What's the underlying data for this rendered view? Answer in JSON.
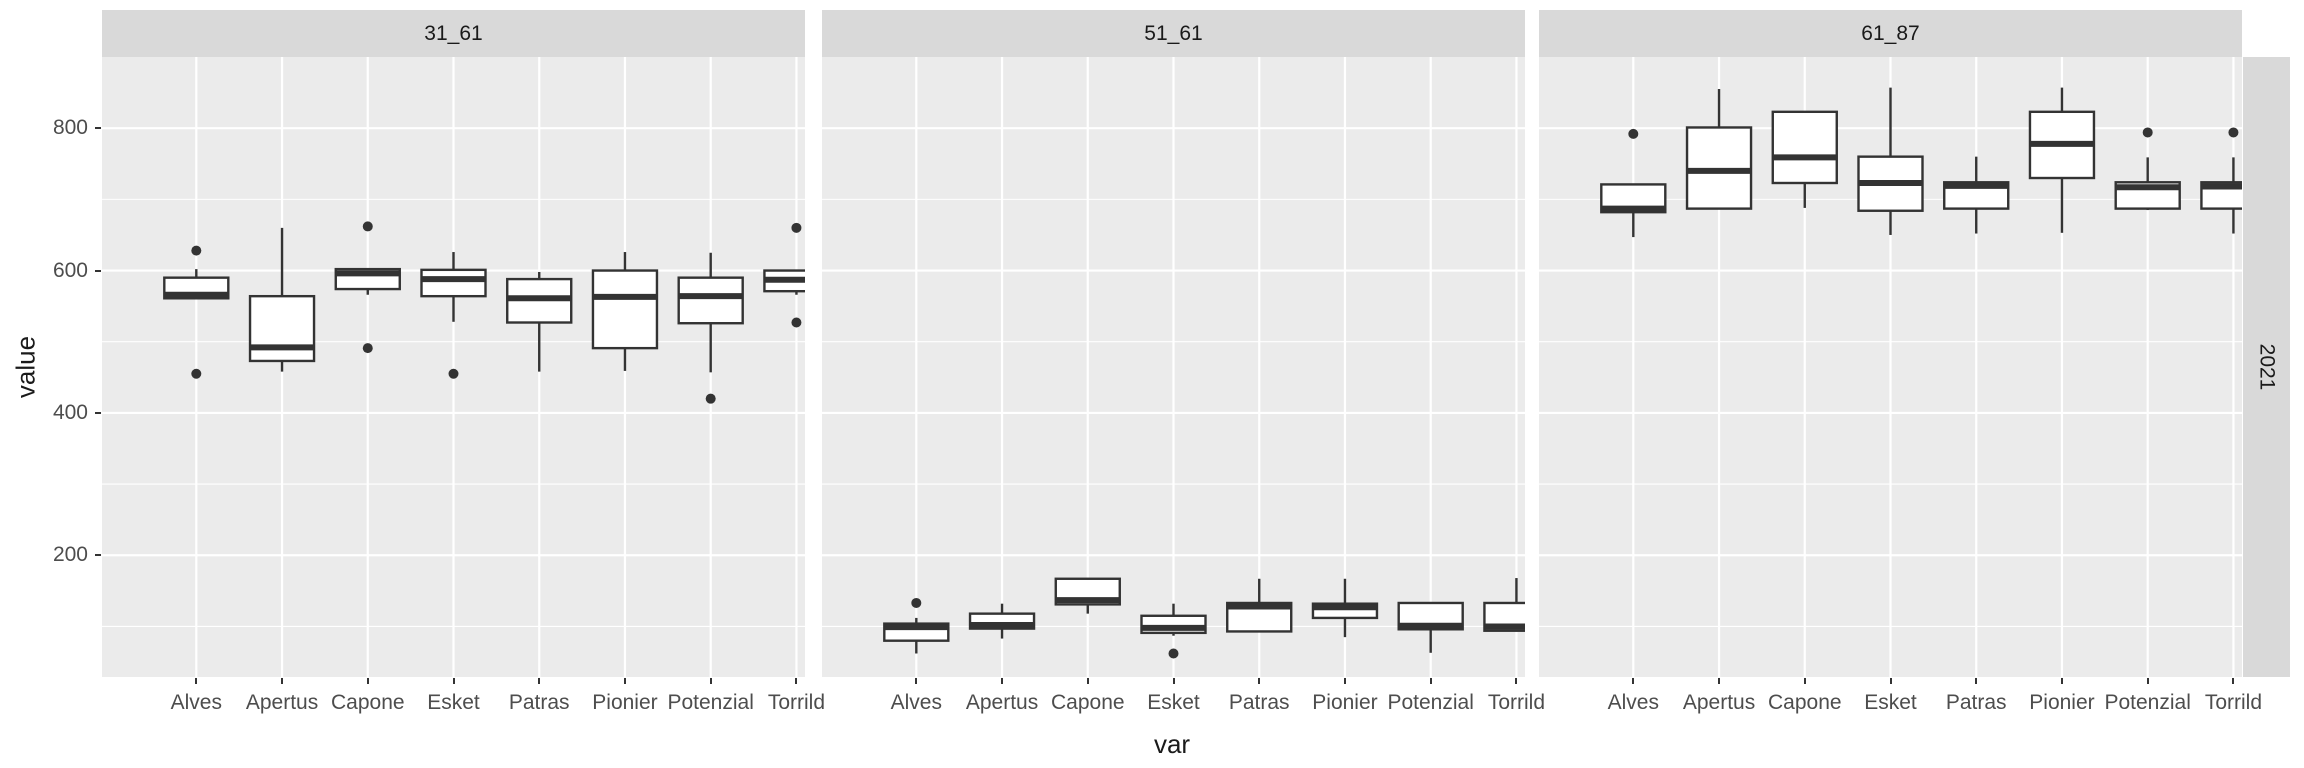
{
  "figure": {
    "y_axis": {
      "title": "value",
      "tick_labels": [
        "800",
        "600",
        "400",
        "200"
      ]
    },
    "x_axis": {
      "title": "var"
    },
    "col_strips": [
      "31_61",
      "51_61",
      "61_87"
    ],
    "row_strip": "2021",
    "colors": {
      "panel_bg": "#EBEBEB",
      "strip_bg": "#D9D9D9",
      "grid": "#FFFFFF",
      "box_stroke": "#333333",
      "box_fill": "#FFFFFF",
      "tick_text": "#4D4D4D",
      "title_text": "#1A1A1A"
    }
  },
  "chart_data": {
    "type": "boxplot",
    "title": "",
    "xlabel": "var",
    "ylabel": "value",
    "facet_row_label": "2021",
    "x_categories": [
      "Alves",
      "Apertus",
      "Capone",
      "Esket",
      "Patras",
      "Pionier",
      "Potenzial",
      "Torrild"
    ],
    "y_ticks": [
      200,
      400,
      600,
      800
    ],
    "y_minor_ticks": [
      100,
      300,
      500,
      700
    ],
    "y_domain": [
      29,
      900
    ],
    "grid": true,
    "facets": [
      {
        "label": "31_61",
        "boxes": [
          {
            "category": "Alves",
            "whisker_low": 561,
            "q1": 561,
            "median": 566,
            "q3": 590,
            "whisker_high": 602,
            "outliers": [
              628,
              455
            ]
          },
          {
            "category": "Apertus",
            "whisker_low": 458,
            "q1": 473,
            "median": 492,
            "q3": 564,
            "whisker_high": 660,
            "outliers": []
          },
          {
            "category": "Capone",
            "whisker_low": 566,
            "q1": 574,
            "median": 596,
            "q3": 602,
            "whisker_high": 602,
            "outliers": [
              662,
              491
            ]
          },
          {
            "category": "Esket",
            "whisker_low": 528,
            "q1": 564,
            "median": 588,
            "q3": 601,
            "whisker_high": 626,
            "outliers": [
              455
            ]
          },
          {
            "category": "Patras",
            "whisker_low": 458,
            "q1": 527,
            "median": 561,
            "q3": 588,
            "whisker_high": 598,
            "outliers": []
          },
          {
            "category": "Pionier",
            "whisker_low": 459,
            "q1": 491,
            "median": 563,
            "q3": 600,
            "whisker_high": 626,
            "outliers": []
          },
          {
            "category": "Potenzial",
            "whisker_low": 457,
            "q1": 526,
            "median": 564,
            "q3": 590,
            "whisker_high": 625,
            "outliers": [
              420
            ]
          },
          {
            "category": "Torrild",
            "whisker_low": 566,
            "q1": 571,
            "median": 587,
            "q3": 600,
            "whisker_high": 600,
            "outliers": [
              660,
              527
            ]
          }
        ]
      },
      {
        "label": "51_61",
        "boxes": [
          {
            "category": "Alves",
            "whisker_low": 62,
            "q1": 80,
            "median": 99,
            "q3": 104,
            "whisker_high": 112,
            "outliers": [
              133
            ]
          },
          {
            "category": "Apertus",
            "whisker_low": 83,
            "q1": 97,
            "median": 102,
            "q3": 118,
            "whisker_high": 132,
            "outliers": []
          },
          {
            "category": "Capone",
            "whisker_low": 118,
            "q1": 131,
            "median": 137,
            "q3": 167,
            "whisker_high": 167,
            "outliers": []
          },
          {
            "category": "Esket",
            "whisker_low": 87,
            "q1": 91,
            "median": 98,
            "q3": 115,
            "whisker_high": 132,
            "outliers": [
              62
            ]
          },
          {
            "category": "Patras",
            "whisker_low": 93,
            "q1": 93,
            "median": 128,
            "q3": 133,
            "whisker_high": 167,
            "outliers": []
          },
          {
            "category": "Pionier",
            "whisker_low": 85,
            "q1": 112,
            "median": 127,
            "q3": 132,
            "whisker_high": 167,
            "outliers": []
          },
          {
            "category": "Potenzial",
            "whisker_low": 63,
            "q1": 96,
            "median": 101,
            "q3": 133,
            "whisker_high": 133,
            "outliers": []
          },
          {
            "category": "Torrild",
            "whisker_low": 94,
            "q1": 94,
            "median": 100,
            "q3": 133,
            "whisker_high": 168,
            "outliers": []
          }
        ]
      },
      {
        "label": "61_87",
        "boxes": [
          {
            "category": "Alves",
            "whisker_low": 647,
            "q1": 682,
            "median": 687,
            "q3": 721,
            "whisker_high": 721,
            "outliers": [
              792
            ]
          },
          {
            "category": "Apertus",
            "whisker_low": 687,
            "q1": 687,
            "median": 740,
            "q3": 801,
            "whisker_high": 855,
            "outliers": []
          },
          {
            "category": "Capone",
            "whisker_low": 688,
            "q1": 723,
            "median": 759,
            "q3": 823,
            "whisker_high": 823,
            "outliers": []
          },
          {
            "category": "Esket",
            "whisker_low": 650,
            "q1": 684,
            "median": 723,
            "q3": 760,
            "whisker_high": 857,
            "outliers": []
          },
          {
            "category": "Patras",
            "whisker_low": 652,
            "q1": 687,
            "median": 719,
            "q3": 724,
            "whisker_high": 760,
            "outliers": []
          },
          {
            "category": "Pionier",
            "whisker_low": 653,
            "q1": 730,
            "median": 778,
            "q3": 823,
            "whisker_high": 857,
            "outliers": []
          },
          {
            "category": "Potenzial",
            "whisker_low": 685,
            "q1": 687,
            "median": 717,
            "q3": 724,
            "whisker_high": 759,
            "outliers": [
              794
            ]
          },
          {
            "category": "Torrild",
            "whisker_low": 652,
            "q1": 687,
            "median": 718,
            "q3": 724,
            "whisker_high": 759,
            "outliers": [
              794
            ]
          }
        ]
      }
    ]
  }
}
